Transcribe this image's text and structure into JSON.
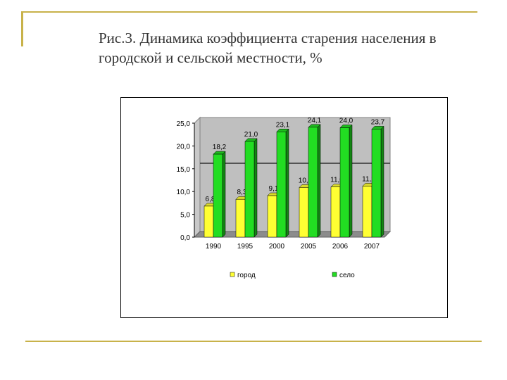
{
  "slide": {
    "title": "Рис.3. Динамика коэффициента старения населения в городской и сельской местности, %"
  },
  "chart_data": {
    "type": "bar",
    "title": "",
    "xlabel": "",
    "ylabel": "",
    "categories": [
      "1990",
      "1995",
      "2000",
      "2005",
      "2006",
      "2007"
    ],
    "ylim": [
      0,
      25
    ],
    "yticks": [
      "0,0",
      "5,0",
      "10,0",
      "15,0",
      "20,0",
      "25,0"
    ],
    "grid": false,
    "legend_position": "bottom",
    "series": [
      {
        "name": "город",
        "color": "#ffff33",
        "values": [
          6.8,
          8.3,
          9.1,
          10.9,
          11.0,
          11.2
        ],
        "labels": [
          "6,8",
          "8,3",
          "9,1",
          "10,9",
          "11,0",
          "11,2"
        ]
      },
      {
        "name": "село",
        "color": "#22dd22",
        "values": [
          18.2,
          21.0,
          23.1,
          24.1,
          24.0,
          23.7
        ],
        "labels": [
          "18,2",
          "21,0",
          "23,1",
          "24,1",
          "24,0",
          "23,7"
        ]
      }
    ]
  }
}
